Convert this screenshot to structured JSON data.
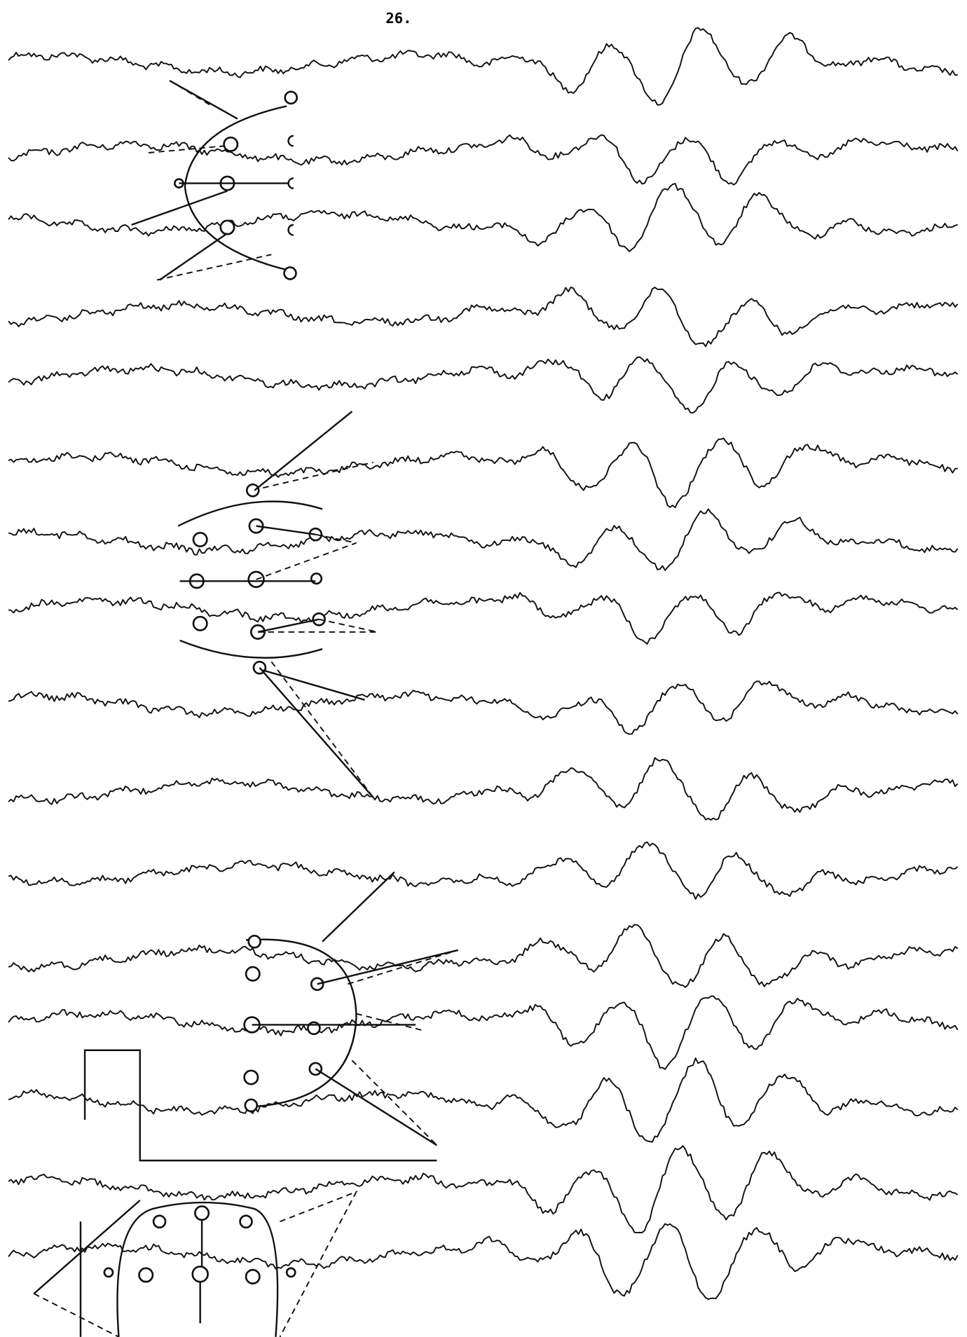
{
  "page_number": "26."
}
